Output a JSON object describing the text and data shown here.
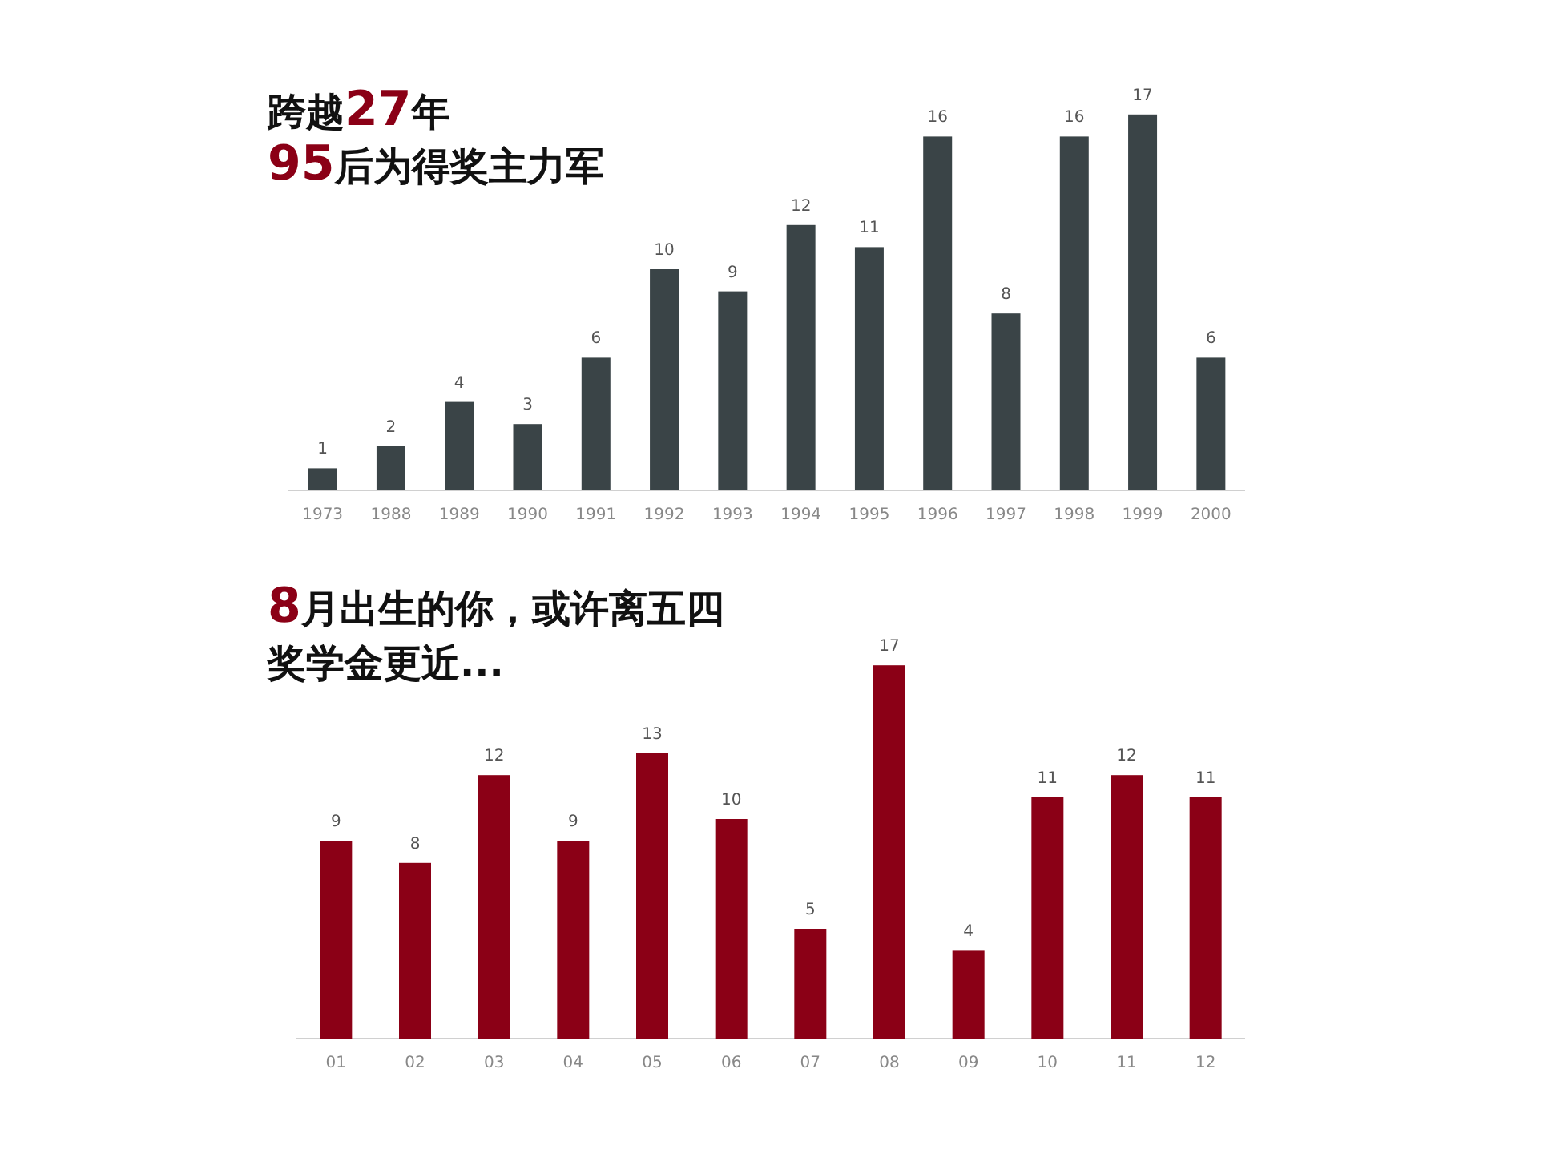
{
  "chart_data": [
    {
      "type": "bar",
      "title": "跨越27年",
      "subtitle": "95后为得奖主力军",
      "categories": [
        "1973",
        "1988",
        "1989",
        "1990",
        "1991",
        "1992",
        "1993",
        "1994",
        "1995",
        "1996",
        "1997",
        "1998",
        "1999",
        "2000"
      ],
      "values": [
        1,
        2,
        4,
        3,
        6,
        10,
        9,
        12,
        11,
        16,
        8,
        16,
        17,
        6
      ],
      "color": "#3a4447",
      "data_labels": true
    },
    {
      "type": "bar",
      "title": "8月出生的你，或许离五四",
      "subtitle": "奖学金更近...",
      "categories": [
        "01",
        "02",
        "03",
        "04",
        "05",
        "06",
        "07",
        "08",
        "09",
        "10",
        "11",
        "12"
      ],
      "values": [
        9,
        8,
        12,
        9,
        13,
        10,
        5,
        17,
        4,
        11,
        12,
        11
      ],
      "color": "#8b0016",
      "data_labels": true
    }
  ]
}
